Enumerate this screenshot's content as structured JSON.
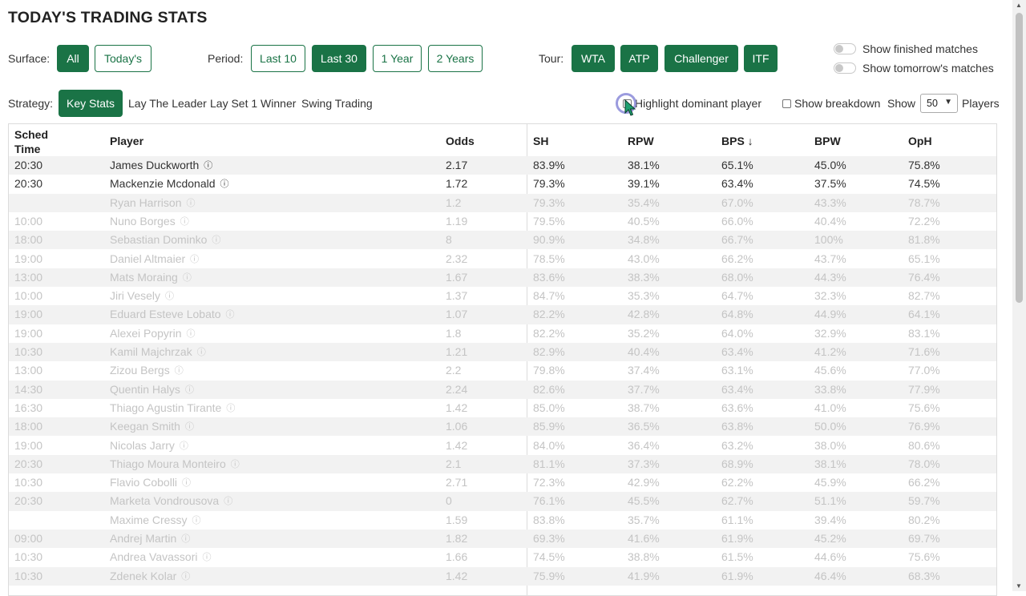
{
  "page": {
    "title": "TODAY'S TRADING STATS"
  },
  "filters": {
    "surface_label": "Surface:",
    "surface_options": [
      "All",
      "Today's"
    ],
    "period_label": "Period:",
    "period_options": [
      "Last 10",
      "Last 30",
      "1 Year",
      "2 Years"
    ],
    "tour_label": "Tour:",
    "tour_options": [
      "WTA",
      "ATP",
      "Challenger",
      "ITF"
    ],
    "show_finished": "Show finished matches",
    "show_tomorrow": "Show tomorrow's matches"
  },
  "strategy": {
    "label": "Strategy:",
    "options": [
      "Key Stats",
      "Lay The Leader",
      "Lay Set 1 Winner",
      "Swing Trading"
    ],
    "highlight_label": "Highlight dominant player",
    "breakdown_label": "Show breakdown",
    "show_label": "Show",
    "show_value": "50",
    "players_label": "Players"
  },
  "table": {
    "headers": {
      "sched_line1": "Sched",
      "sched_line2": "Time",
      "player": "Player",
      "odds": "Odds",
      "sh": "SH",
      "rpw": "RPW",
      "bps": "BPS ↓",
      "bpw": "BPW",
      "oph": "OpH"
    },
    "info_glyph": "ⓘ",
    "rows": [
      {
        "time": "20:30",
        "player": "James Duckworth",
        "odds": "2.17",
        "sh": "83.9%",
        "rpw": "38.1%",
        "bps": "65.1%",
        "bpw": "45.0%",
        "oph": "75.8%"
      },
      {
        "time": "20:30",
        "player": "Mackenzie Mcdonald",
        "odds": "1.72",
        "sh": "79.3%",
        "rpw": "39.1%",
        "bps": "63.4%",
        "bpw": "37.5%",
        "oph": "74.5%"
      },
      {
        "time": "",
        "player": "Ryan Harrison",
        "odds": "1.2",
        "sh": "79.3%",
        "rpw": "35.4%",
        "bps": "67.0%",
        "bpw": "43.3%",
        "oph": "78.7%"
      },
      {
        "time": "10:00",
        "player": "Nuno Borges",
        "odds": "1.19",
        "sh": "79.5%",
        "rpw": "40.5%",
        "bps": "66.0%",
        "bpw": "40.4%",
        "oph": "72.2%"
      },
      {
        "time": "18:00",
        "player": "Sebastian Dominko",
        "odds": "8",
        "sh": "90.9%",
        "rpw": "34.8%",
        "bps": "66.7%",
        "bpw": "100%",
        "oph": "81.8%"
      },
      {
        "time": "19:00",
        "player": "Daniel Altmaier",
        "odds": "2.32",
        "sh": "78.5%",
        "rpw": "43.0%",
        "bps": "66.2%",
        "bpw": "43.7%",
        "oph": "65.1%"
      },
      {
        "time": "13:00",
        "player": "Mats Moraing",
        "odds": "1.67",
        "sh": "83.6%",
        "rpw": "38.3%",
        "bps": "68.0%",
        "bpw": "44.3%",
        "oph": "76.4%"
      },
      {
        "time": "10:00",
        "player": "Jiri Vesely",
        "odds": "1.37",
        "sh": "84.7%",
        "rpw": "35.3%",
        "bps": "64.7%",
        "bpw": "32.3%",
        "oph": "82.7%"
      },
      {
        "time": "19:00",
        "player": "Eduard Esteve Lobato",
        "odds": "1.07",
        "sh": "82.2%",
        "rpw": "42.8%",
        "bps": "64.8%",
        "bpw": "44.9%",
        "oph": "64.1%"
      },
      {
        "time": "19:00",
        "player": "Alexei Popyrin",
        "odds": "1.8",
        "sh": "82.2%",
        "rpw": "35.2%",
        "bps": "64.0%",
        "bpw": "32.9%",
        "oph": "83.1%"
      },
      {
        "time": "10:30",
        "player": "Kamil Majchrzak",
        "odds": "1.21",
        "sh": "82.9%",
        "rpw": "40.4%",
        "bps": "63.4%",
        "bpw": "41.2%",
        "oph": "71.6%"
      },
      {
        "time": "13:00",
        "player": "Zizou Bergs",
        "odds": "2.2",
        "sh": "79.8%",
        "rpw": "37.4%",
        "bps": "63.1%",
        "bpw": "45.6%",
        "oph": "77.0%"
      },
      {
        "time": "14:30",
        "player": "Quentin Halys",
        "odds": "2.24",
        "sh": "82.6%",
        "rpw": "37.7%",
        "bps": "63.4%",
        "bpw": "33.8%",
        "oph": "77.9%"
      },
      {
        "time": "16:30",
        "player": "Thiago Agustin Tirante",
        "odds": "1.42",
        "sh": "85.0%",
        "rpw": "38.7%",
        "bps": "63.6%",
        "bpw": "41.0%",
        "oph": "75.6%"
      },
      {
        "time": "18:00",
        "player": "Keegan Smith",
        "odds": "1.06",
        "sh": "85.9%",
        "rpw": "36.5%",
        "bps": "63.8%",
        "bpw": "50.0%",
        "oph": "76.9%"
      },
      {
        "time": "19:00",
        "player": "Nicolas Jarry",
        "odds": "1.42",
        "sh": "84.0%",
        "rpw": "36.4%",
        "bps": "63.2%",
        "bpw": "38.0%",
        "oph": "80.6%"
      },
      {
        "time": "20:30",
        "player": "Thiago Moura Monteiro",
        "odds": "2.1",
        "sh": "81.1%",
        "rpw": "37.3%",
        "bps": "68.9%",
        "bpw": "38.1%",
        "oph": "78.0%"
      },
      {
        "time": "10:30",
        "player": "Flavio Cobolli",
        "odds": "2.71",
        "sh": "72.3%",
        "rpw": "42.9%",
        "bps": "62.2%",
        "bpw": "45.9%",
        "oph": "66.2%"
      },
      {
        "time": "20:30",
        "player": "Marketa Vondrousova",
        "odds": "0",
        "sh": "76.1%",
        "rpw": "45.5%",
        "bps": "62.7%",
        "bpw": "51.1%",
        "oph": "59.7%"
      },
      {
        "time": "",
        "player": "Maxime Cressy",
        "odds": "1.59",
        "sh": "83.8%",
        "rpw": "35.7%",
        "bps": "61.1%",
        "bpw": "39.4%",
        "oph": "80.2%"
      },
      {
        "time": "09:00",
        "player": "Andrej Martin",
        "odds": "1.82",
        "sh": "69.3%",
        "rpw": "41.6%",
        "bps": "61.9%",
        "bpw": "45.2%",
        "oph": "69.7%"
      },
      {
        "time": "10:30",
        "player": "Andrea Vavassori",
        "odds": "1.66",
        "sh": "74.5%",
        "rpw": "38.8%",
        "bps": "61.5%",
        "bpw": "44.6%",
        "oph": "75.6%"
      },
      {
        "time": "10:30",
        "player": "Zdenek Kolar",
        "odds": "1.42",
        "sh": "75.9%",
        "rpw": "41.9%",
        "bps": "61.9%",
        "bpw": "46.4%",
        "oph": "68.3%"
      }
    ]
  },
  "colors": {
    "accent": "#1a7346",
    "stripe": "#f2f2f2",
    "dim_text": "#c4c4c4"
  },
  "icons": {
    "info": "info-icon",
    "toggle": "toggle-switch",
    "cursor": "mouse-pointer-icon"
  }
}
